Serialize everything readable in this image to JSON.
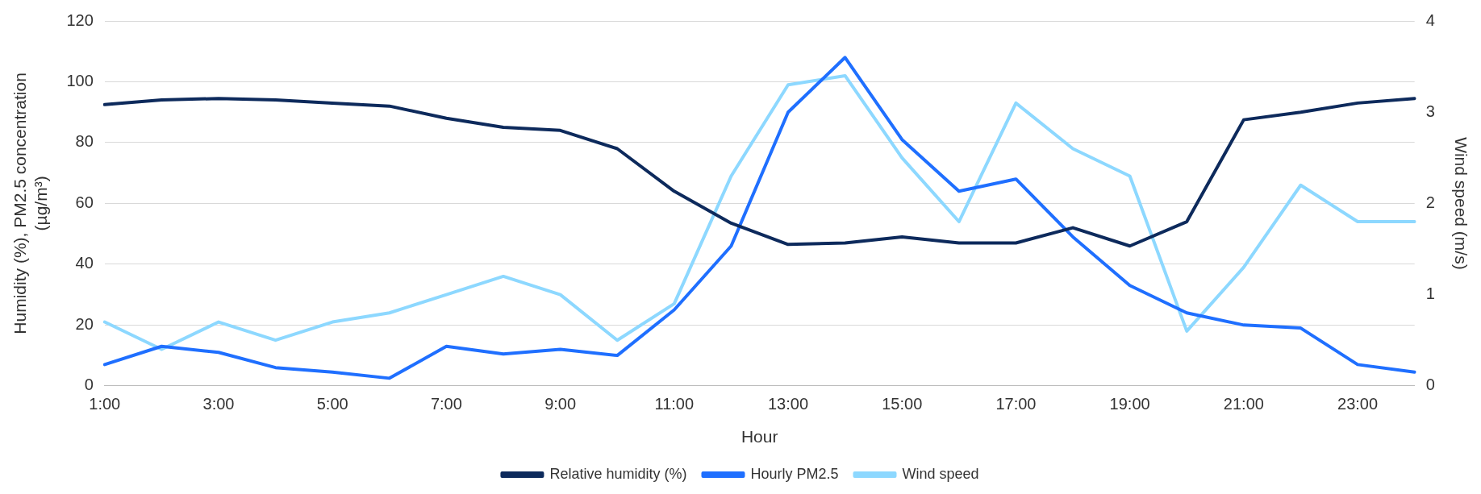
{
  "chart_data": {
    "type": "line",
    "xlabel": "Hour",
    "ylabel": "Humidity (%), PM2.5 concentration\n(µg/m³)",
    "y2label": "Wind speed (m/s)",
    "categories": [
      "1:00",
      null,
      "3:00",
      null,
      "5:00",
      null,
      "7:00",
      null,
      "9:00",
      null,
      "11:00",
      null,
      "13:00",
      null,
      "15:00",
      null,
      "17:00",
      null,
      "19:00",
      null,
      "21:00",
      null,
      "23:00",
      null
    ],
    "series": [
      {
        "name": "Relative humidity (%)",
        "color": "#0d2a5c",
        "values": [
          92.5,
          94,
          94.5,
          94,
          93,
          92,
          88,
          85,
          84,
          78,
          64,
          53.5,
          46.5,
          47,
          49,
          47,
          47,
          52,
          46,
          54,
          87.5,
          90,
          93,
          94.5
        ]
      },
      {
        "name": "Hourly PM2.5",
        "color": "#1f6fff",
        "values": [
          7,
          13,
          11,
          6,
          4.5,
          2.5,
          13,
          10.5,
          12,
          10,
          25,
          46,
          90,
          108,
          81,
          64,
          68,
          49,
          33,
          24,
          20,
          19,
          7,
          4.5
        ]
      },
      {
        "name": "Wind speed",
        "color": "#8dd8ff",
        "axis": "y2",
        "values": [
          0.7,
          0.4,
          0.7,
          0.5,
          0.7,
          0.8,
          1.0,
          1.2,
          1.0,
          0.5,
          0.9,
          2.3,
          3.3,
          3.4,
          2.5,
          1.8,
          3.1,
          2.6,
          2.3,
          0.6,
          1.3,
          2.2,
          1.8,
          1.8
        ]
      }
    ],
    "ylim": [
      0,
      120
    ],
    "yticks": [
      0,
      20,
      40,
      60,
      80,
      100,
      120
    ],
    "y2lim": [
      0,
      4
    ],
    "y2ticks": [
      0,
      1,
      2,
      3,
      4
    ],
    "grid": "y",
    "legend": "bottom",
    "marker": "none",
    "line_style": "solid"
  }
}
